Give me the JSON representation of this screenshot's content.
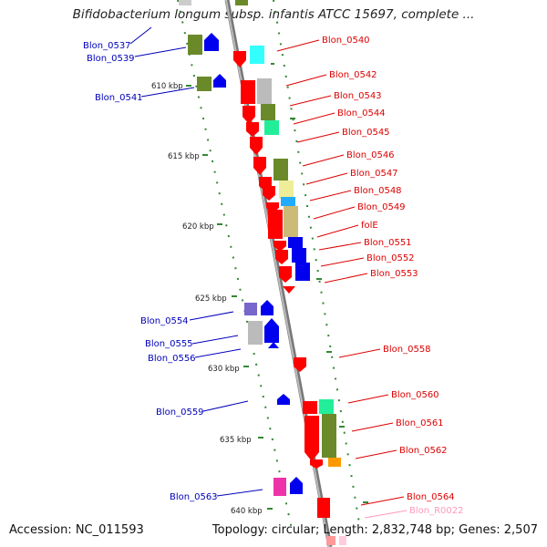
{
  "title": "Bifidobacterium longum subsp. infantis ATCC 15697, complete ...",
  "footer": {
    "accession": "Accession: NC_011593",
    "summary": "Topology: circular; Length: 2,832,748 bp; Genes: 2,507"
  },
  "ticks": [
    "610 kbp",
    "615 kbp",
    "620 kbp",
    "625 kbp",
    "630 kbp",
    "635 kbp",
    "640 kbp"
  ],
  "labels_right": [
    "Blon_0540",
    "Blon_0542",
    "Blon_0543",
    "Blon_0544",
    "Blon_0545",
    "Blon_0546",
    "Blon_0547",
    "Blon_0548",
    "Blon_0549",
    "folE",
    "Blon_0551",
    "Blon_0552",
    "Blon_0553",
    "Blon_0558",
    "Blon_0560",
    "Blon_0561",
    "Blon_0562",
    "Blon_0564"
  ],
  "labels_left": [
    "Blon_0537",
    "Blon_0539",
    "Blon_0541",
    "Blon_0554",
    "Blon_0555",
    "Blon_0556",
    "Blon_0559",
    "Blon_0563"
  ],
  "labels_rna": [
    "Blon_R0022"
  ],
  "colors": {
    "forward_cds": "#ff0000",
    "reverse_cds": "#0000ff",
    "backbone": "#999999",
    "gc_marks": "#338833"
  }
}
